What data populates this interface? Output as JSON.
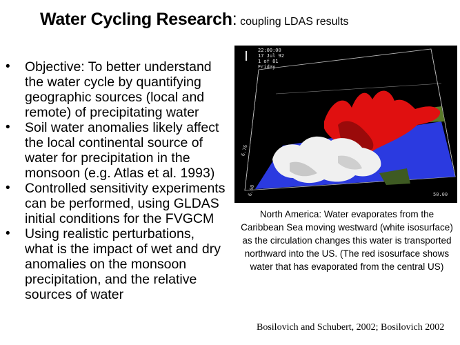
{
  "slide": {
    "title_main": "Water Cycling Research",
    "title_colon": ":",
    "title_sub": " coupling LDAS results",
    "bullets": [
      "Objective: To better understand the water cycle by quantifying geographic sources (local and remote) of precipitating water",
      "Soil water anomalies likely affect the local continental source of water for precipitation in the monsoon (e.g. Atlas et al. 1993)",
      "Controlled sensitivity experiments can be performed, using GLDAS initial conditions for the FVGCM",
      "Using realistic perturbations, what is the impact of wet and dry anomalies on the monsoon precipitation, and the relative sources of water"
    ],
    "bullet_glyph": "•",
    "visualization": {
      "hud_line1": "22:00:00",
      "hud_line2": "17 Jul 92",
      "hud_line3": "1 of 81",
      "hud_line4": "Friday",
      "axis_left": "6.76",
      "axis_bottom_left": "6.00",
      "axis_bottom_right": "50.00",
      "colors": {
        "background": "#000000",
        "ocean_plane": "#2b3ae0",
        "land_patch": "#5a7a2a",
        "red_isosurface": "#e01010",
        "white_isosurface": "#f0f0f0"
      }
    },
    "caption": "North America: Water evaporates from the Caribbean Sea moving westward (white isosurface) as the circulation changes this water is transported northward into the US. (The red isosurface shows water that has evaporated from the central US)",
    "citation": "Bosilovich and Schubert, 2002; Bosilovich 2002"
  }
}
